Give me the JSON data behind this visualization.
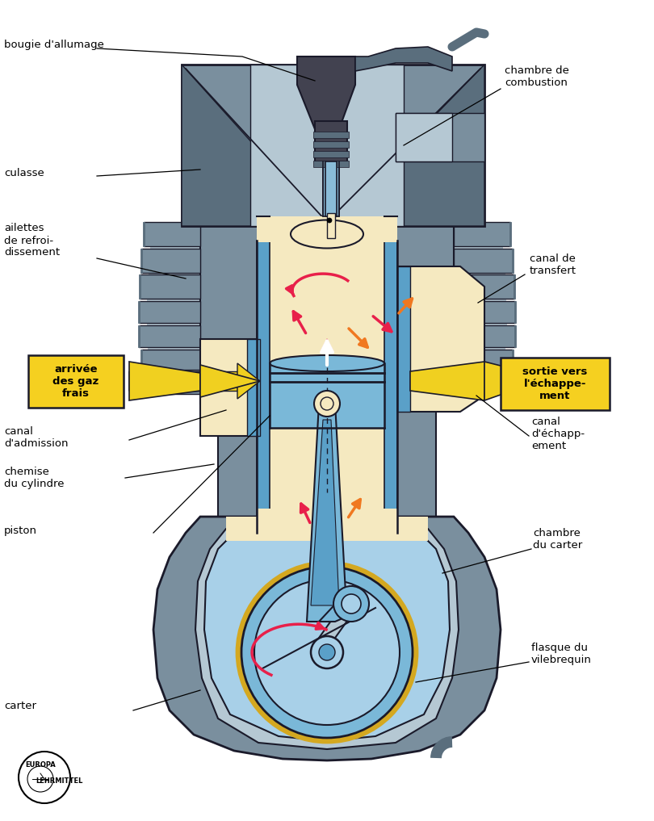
{
  "bg_color": "#ffffff",
  "gray_body": "#7a8f9e",
  "gray_dark": "#5a6e7d",
  "gray_light": "#9ab0be",
  "gray_lighter": "#b5c8d3",
  "cream": "#f5e9c0",
  "cream_light": "#fdf5d8",
  "blue_piston": "#7ab8d8",
  "blue_light": "#a8d0e8",
  "blue_mid": "#5aa0c8",
  "dark_outline": "#1a1a2a",
  "yellow_arrow": "#f0d020",
  "pink_arrow": "#e8204a",
  "orange_arrow": "#f07820",
  "white_arrow": "#ffffff",
  "yellow_label_bg": "#f5d020",
  "spark_blue": "#8abcd8",
  "spark_dark": "#424250",
  "spark_darker": "#303040",
  "gold_ring": "#d4a820",
  "figsize": [
    8.1,
    10.17
  ],
  "dpi": 100,
  "labels": {
    "bougie": "bougie d'allumage",
    "chambre_combustion": "chambre de\ncombustion",
    "culasse": "culasse",
    "ailettes": "ailettes\nde refroi-\ndissement",
    "arrivee": "arrivée\ndes gaz\nfrais",
    "canal_transfert": "canal de\ntransfert",
    "sortie": "sortie vers\nl'échappe-\nment",
    "canal_admission": "canal\nd'admission",
    "chemise": "chemise\ndu cylindre",
    "canal_echapp": "canal\nd'échapp-\nement",
    "chambre_carter": "chambre\ndu carter",
    "piston": "piston",
    "carter": "carter",
    "flasque": "flasque du\nvilebrequin"
  }
}
